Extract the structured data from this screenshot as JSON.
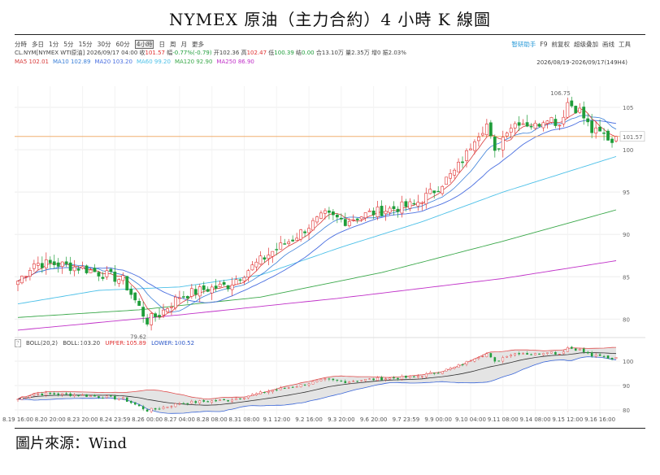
{
  "title": "NYMEX 原油（主力合約）4 小時 K 線圖",
  "source": "圖片來源：Wind",
  "toolbar": {
    "timeframes": [
      "分時",
      "多日",
      "1分",
      "5分",
      "15分",
      "30分",
      "60分",
      "4小時",
      "日",
      "周",
      "月",
      "更多"
    ],
    "active_timeframe": "4小時",
    "right_items": [
      "智研助手",
      "F9",
      "前复权",
      "超级叠加",
      "画线",
      "工具"
    ]
  },
  "info_line": {
    "symbol": "CL.NYM[NYMEX WTI原油]",
    "datetime": "2026/09/17 04:00",
    "close_label": "收",
    "close": "101.57",
    "change_label": "幅",
    "change": "-0.77%(-0.79)",
    "open_label": "开",
    "open": "102.36",
    "high_label": "高",
    "high": "102.47",
    "low_label": "低",
    "low": "100.39",
    "hold_label": "结",
    "hold": "0.00",
    "vol_label": "合",
    "vol": "13.10万",
    "amount_label": "量",
    "amount": "2.35万",
    "pos_label": "增",
    "pos": "0",
    "amp_label": "振",
    "amp": "2.03%"
  },
  "date_range": "2026/08/19-2026/09/17(149H4)",
  "ma_legend": [
    {
      "label": "MA5",
      "value": "102.01",
      "color": "#d83a3a"
    },
    {
      "label": "MA10",
      "value": "102.89",
      "color": "#3a7fd8"
    },
    {
      "label": "MA20",
      "value": "103.20",
      "color": "#4a6fe0"
    },
    {
      "label": "MA60",
      "value": "99.20",
      "color": "#4cc0e8"
    },
    {
      "label": "MA120",
      "value": "92.90",
      "color": "#3aa84a"
    },
    {
      "label": "MA250",
      "value": "86.90",
      "color": "#c030c8"
    }
  ],
  "boll_legend": {
    "help": "?",
    "label": "BOLL(20,2)",
    "mid_label": "BOLL:",
    "mid": "103.20",
    "upper_label": "UPPER:",
    "upper": "105.89",
    "lower_label": "LOWER:",
    "lower": "100.52"
  },
  "colors": {
    "up": "#e03030",
    "down": "#1f9d3a",
    "last_price_line": "#f0b070",
    "boll_band_fill": "#e4e4e4"
  },
  "chart_data": {
    "type": "candlestick",
    "y_ticks": [
      80,
      85,
      90,
      95,
      100,
      105
    ],
    "y_range": [
      78.5,
      107.5
    ],
    "boll_y_ticks": [
      80,
      90,
      100
    ],
    "boll_y_range": [
      78,
      106
    ],
    "last_price": 101.57,
    "annotations": {
      "high": "106.75",
      "low": "79.62"
    },
    "x_labels": [
      "8.19 16:00",
      "8.20 20:00",
      "8.23 20:00",
      "8.24 23:59",
      "8.26 00:00",
      "8.27 04:00",
      "8.28 08:00",
      "8.31 08:00",
      "9.1 12:00",
      "9.2 16:00",
      "9.3 20:00",
      "9.6 20:00",
      "9.7 23:59",
      "9.9 00:00",
      "9.10 04:00",
      "9.11 08:00",
      "9.14 08:00",
      "9.15 12:00",
      "9.16 16:00"
    ],
    "x_label_index": [
      0,
      8,
      16,
      24,
      32,
      40,
      48,
      56,
      64,
      72,
      80,
      88,
      96,
      104,
      112,
      120,
      128,
      136,
      144
    ],
    "close_anchors": [
      [
        0,
        84.5
      ],
      [
        4,
        86.6
      ],
      [
        10,
        86.5
      ],
      [
        16,
        86.0
      ],
      [
        22,
        85.2
      ],
      [
        26,
        84.6
      ],
      [
        30,
        81.4
      ],
      [
        32,
        79.8
      ],
      [
        35,
        80.6
      ],
      [
        40,
        82.7
      ],
      [
        46,
        83.5
      ],
      [
        52,
        84.0
      ],
      [
        58,
        86.2
      ],
      [
        63,
        88.0
      ],
      [
        68,
        89.5
      ],
      [
        72,
        91.0
      ],
      [
        76,
        92.3
      ],
      [
        81,
        91.6
      ],
      [
        87,
        92.5
      ],
      [
        93,
        93.1
      ],
      [
        98,
        93.5
      ],
      [
        103,
        95.2
      ],
      [
        108,
        97.4
      ],
      [
        111,
        99.5
      ],
      [
        113,
        101.5
      ],
      [
        116,
        103.0
      ],
      [
        118,
        99.5
      ],
      [
        121,
        102.5
      ],
      [
        124,
        103.4
      ],
      [
        128,
        102.8
      ],
      [
        131,
        104.0
      ],
      [
        134,
        103.0
      ],
      [
        136,
        105.6
      ],
      [
        139,
        104.6
      ],
      [
        142,
        102.2
      ],
      [
        145,
        101.8
      ],
      [
        147,
        101.0
      ],
      [
        148,
        101.57
      ]
    ],
    "ma60_anchors": [
      [
        0,
        81.8
      ],
      [
        20,
        83.4
      ],
      [
        40,
        83.8
      ],
      [
        60,
        85.2
      ],
      [
        80,
        88.5
      ],
      [
        100,
        91.5
      ],
      [
        120,
        95.0
      ],
      [
        148,
        99.2
      ]
    ],
    "ma120_anchors": [
      [
        0,
        80.2
      ],
      [
        30,
        81.1
      ],
      [
        60,
        82.6
      ],
      [
        90,
        85.5
      ],
      [
        120,
        89.2
      ],
      [
        148,
        92.9
      ]
    ],
    "ma250_anchors": [
      [
        0,
        78.7
      ],
      [
        40,
        80.5
      ],
      [
        80,
        82.5
      ],
      [
        120,
        84.8
      ],
      [
        148,
        86.9
      ]
    ]
  }
}
